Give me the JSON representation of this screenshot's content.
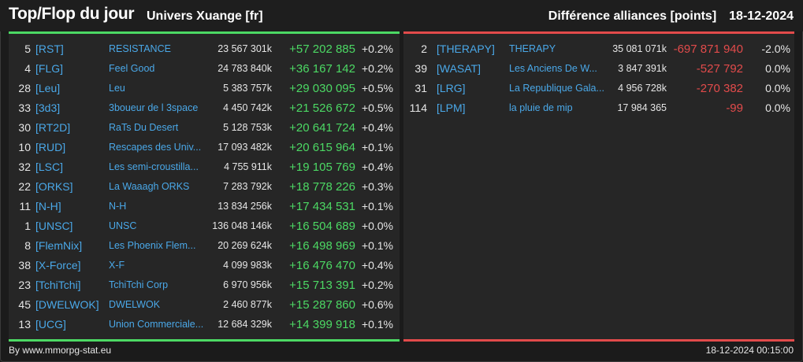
{
  "header": {
    "title": "Top/Flop du jour",
    "subtitle": "Univers Xuange [fr]",
    "right_label": "Différence alliances [points]",
    "date": "18-12-2024"
  },
  "colors": {
    "positive": "#4cd964",
    "negative": "#e24b4b",
    "link": "#4aa8e8"
  },
  "top": [
    {
      "rank": "5",
      "tag": "[RST]",
      "name": "RESISTANCE",
      "points": "23 567 301k",
      "diff": "+57 202 885",
      "pct": "+0.2%"
    },
    {
      "rank": "4",
      "tag": "[FLG]",
      "name": "Feel Good",
      "points": "24 783 840k",
      "diff": "+36 167 142",
      "pct": "+0.2%"
    },
    {
      "rank": "28",
      "tag": "[Leu]",
      "name": "Leu",
      "points": "5 383 757k",
      "diff": "+29 030 095",
      "pct": "+0.5%"
    },
    {
      "rank": "33",
      "tag": "[3d3]",
      "name": "3boueur de l 3space",
      "points": "4 450 742k",
      "diff": "+21 526 672",
      "pct": "+0.5%"
    },
    {
      "rank": "30",
      "tag": "[RT2D]",
      "name": "RaTs Du Desert",
      "points": "5 128 753k",
      "diff": "+20 641 724",
      "pct": "+0.4%"
    },
    {
      "rank": "10",
      "tag": "[RUD]",
      "name": "Rescapes des Univ...",
      "points": "17 093 482k",
      "diff": "+20 615 964",
      "pct": "+0.1%"
    },
    {
      "rank": "32",
      "tag": "[LSC]",
      "name": "Les semi-croustilla...",
      "points": "4 755 911k",
      "diff": "+19 105 769",
      "pct": "+0.4%"
    },
    {
      "rank": "22",
      "tag": "[ORKS]",
      "name": "La Waaagh ORKS",
      "points": "7 283 792k",
      "diff": "+18 778 226",
      "pct": "+0.3%"
    },
    {
      "rank": "11",
      "tag": "[N-H]",
      "name": "N-H",
      "points": "13 834 256k",
      "diff": "+17 434 531",
      "pct": "+0.1%"
    },
    {
      "rank": "1",
      "tag": "[UNSC]",
      "name": "UNSC",
      "points": "136 048 146k",
      "diff": "+16 504 689",
      "pct": "+0.0%"
    },
    {
      "rank": "8",
      "tag": "[FlemNix]",
      "name": "Les Phoenix Flem...",
      "points": "20 269 624k",
      "diff": "+16 498 969",
      "pct": "+0.1%"
    },
    {
      "rank": "38",
      "tag": "[X-Force]",
      "name": "X-F",
      "points": "4 099 983k",
      "diff": "+16 476 470",
      "pct": "+0.4%"
    },
    {
      "rank": "23",
      "tag": "[TchiTchi]",
      "name": "TchiTchi Corp",
      "points": "6 970 956k",
      "diff": "+15 713 391",
      "pct": "+0.2%"
    },
    {
      "rank": "45",
      "tag": "[DWELWOK]",
      "name": "DWELWOK",
      "points": "2 460 877k",
      "diff": "+15 287 860",
      "pct": "+0.6%"
    },
    {
      "rank": "13",
      "tag": "[UCG]",
      "name": "Union Commerciale...",
      "points": "12 684 329k",
      "diff": "+14 399 918",
      "pct": "+0.1%"
    }
  ],
  "flop": [
    {
      "rank": "2",
      "tag": "[THERAPY]",
      "name": "THERAPY",
      "points": "35 081 071k",
      "diff": "-697 871 940",
      "pct": "-2.0%"
    },
    {
      "rank": "39",
      "tag": "[WASAT]",
      "name": "Les Anciens De W...",
      "points": "3 847 391k",
      "diff": "-527 792",
      "pct": "0.0%"
    },
    {
      "rank": "31",
      "tag": "[LRG]",
      "name": "La Republique Gala...",
      "points": "4 956 728k",
      "diff": "-270 382",
      "pct": "0.0%"
    },
    {
      "rank": "114",
      "tag": "[LPM]",
      "name": "la pluie de mip",
      "points": "17 984 365",
      "diff": "-99",
      "pct": "0.0%"
    }
  ],
  "footer": {
    "credit": "By www.mmorpg-stat.eu",
    "timestamp": "18-12-2024 00:15:00"
  }
}
